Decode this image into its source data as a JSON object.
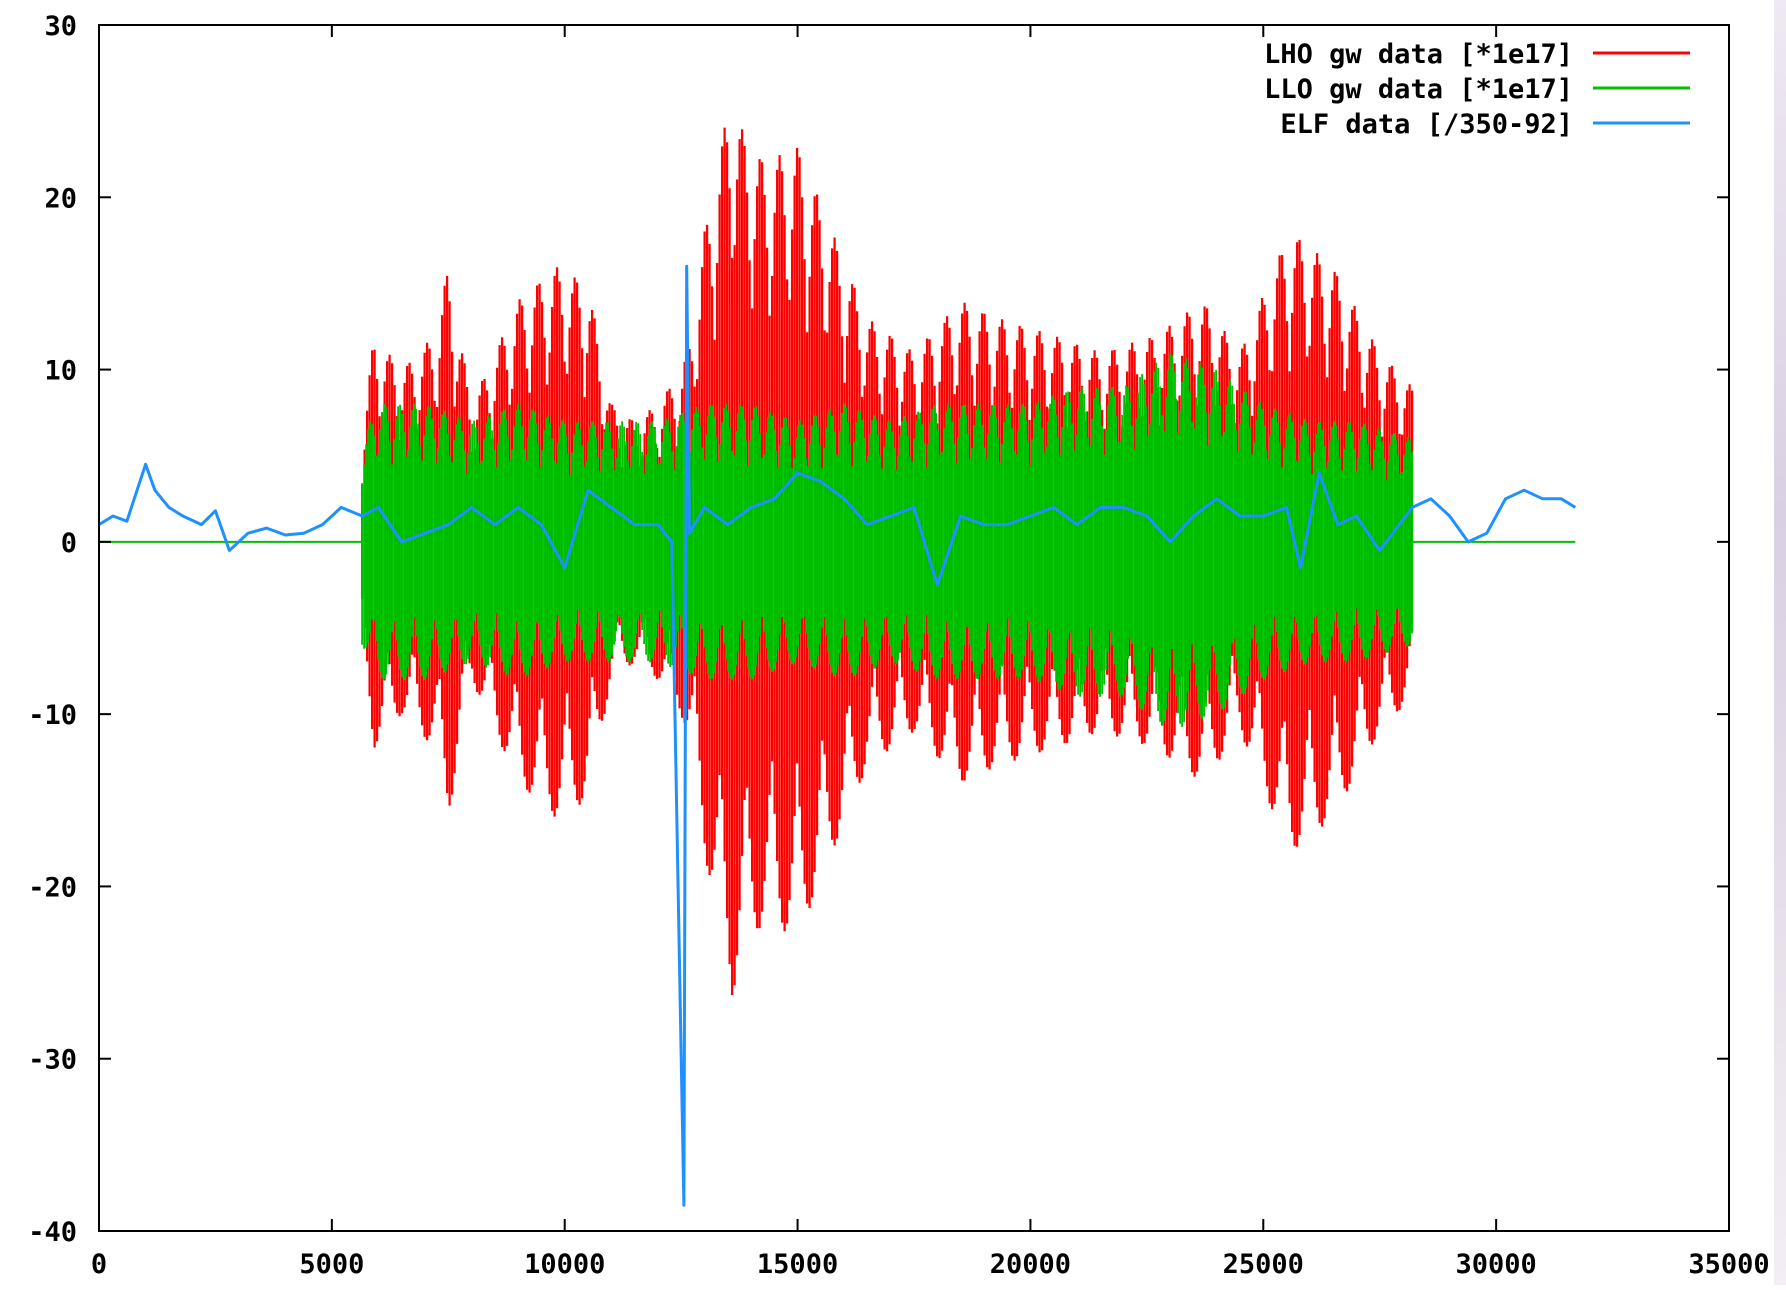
{
  "colors": {
    "lho": "#ff0000",
    "llo": "#00c000",
    "elf": "#1e90ff",
    "axis": "#000000",
    "background": "#ffffff"
  },
  "chart_data": {
    "type": "line",
    "title": "",
    "xlabel": "",
    "ylabel": "",
    "xlim": [
      0,
      35000
    ],
    "ylim": [
      -40,
      30
    ],
    "xticks": [
      0,
      5000,
      10000,
      15000,
      20000,
      25000,
      30000,
      35000
    ],
    "xtick_labels": [
      "0",
      "5000",
      "10000",
      "15000",
      "20000",
      "25000",
      "30000",
      "35000"
    ],
    "yticks": [
      -40,
      -30,
      -20,
      -10,
      0,
      10,
      20,
      30
    ],
    "ytick_labels": [
      "-40",
      "-30",
      "-20",
      "-10",
      "0",
      "10",
      "20",
      "30"
    ],
    "grid": false,
    "legend_position": "top-right",
    "series": [
      {
        "name": "LHO gw data [*1e17]",
        "color": "#ff0000",
        "style": "dense oscillating signal (envelope shown)",
        "x_range": [
          5650,
          28200
        ],
        "zero_outside_range": false,
        "envelope_x": [
          5650,
          5900,
          6500,
          7200,
          7500,
          8000,
          9000,
          9800,
          10500,
          11000,
          11500,
          12000,
          12500,
          12700,
          13000,
          13600,
          13800,
          14300,
          15000,
          15600,
          16500,
          17500,
          18500,
          19300,
          20500,
          21500,
          22700,
          23700,
          24500,
          25400,
          25600,
          26500,
          27500,
          28200
        ],
        "envelope_upper": [
          6,
          12,
          10,
          12,
          16,
          8,
          14,
          16,
          15,
          8,
          7,
          8,
          10,
          12,
          18,
          26.5,
          24,
          22,
          23,
          19,
          13,
          11,
          14,
          13,
          12,
          11,
          12,
          14,
          11,
          17,
          18,
          16,
          11,
          9
        ],
        "envelope_lower": [
          -6,
          -12,
          -10,
          -12,
          -16,
          -8,
          -14,
          -16,
          -15,
          -8,
          -7,
          -8,
          -10,
          -12,
          -18,
          -26.5,
          -24,
          -22,
          -23,
          -19,
          -13,
          -11,
          -14,
          -13,
          -12,
          -11,
          -12,
          -14,
          -11,
          -17,
          -18,
          -16,
          -11,
          -9
        ]
      },
      {
        "name": "LLO gw data [*1e17]",
        "color": "#00c000",
        "style": "dense oscillating signal (envelope shown)",
        "x_range": [
          5650,
          28200
        ],
        "zero_outside_range": true,
        "envelope_x": [
          5650,
          6000,
          7000,
          8000,
          9000,
          10000,
          11000,
          12000,
          13000,
          14000,
          15000,
          16000,
          17000,
          18000,
          19000,
          20000,
          21000,
          22000,
          23000,
          24000,
          25000,
          26000,
          27000,
          28200
        ],
        "envelope_upper": [
          6,
          8,
          8,
          7,
          8,
          7,
          7,
          7,
          8,
          8,
          7,
          8,
          7,
          8,
          8,
          8,
          9,
          9,
          11,
          10,
          8,
          7,
          7,
          6
        ],
        "envelope_lower": [
          -6,
          -8,
          -8,
          -7,
          -8,
          -7,
          -7,
          -7,
          -8,
          -8,
          -7,
          -8,
          -7,
          -8,
          -8,
          -8,
          -9,
          -9,
          -11,
          -10,
          -8,
          -7,
          -7,
          -6
        ]
      },
      {
        "name": "ELF data [/350-92]",
        "color": "#1e90ff",
        "style": "line",
        "x": [
          0,
          300,
          600,
          1000,
          1200,
          1500,
          1800,
          2200,
          2500,
          2800,
          3200,
          3600,
          4000,
          4400,
          4800,
          5200,
          5650,
          6000,
          6500,
          7000,
          7500,
          8000,
          8500,
          9000,
          9500,
          10000,
          10500,
          11000,
          11500,
          12000,
          12300,
          12560,
          12620,
          12680,
          13000,
          13500,
          14000,
          14500,
          15000,
          15500,
          16000,
          16500,
          17000,
          17500,
          18000,
          18500,
          19000,
          19500,
          20000,
          20500,
          21000,
          21500,
          22000,
          22500,
          23000,
          23500,
          24000,
          24500,
          25000,
          25500,
          25800,
          26200,
          26600,
          27000,
          27500,
          28200,
          28600,
          29000,
          29400,
          29800,
          30200,
          30600,
          31000,
          31400,
          31700
        ],
        "y": [
          1,
          1.5,
          1.2,
          4.5,
          3,
          2,
          1.5,
          1,
          1.8,
          -0.5,
          0.5,
          0.8,
          0.4,
          0.5,
          1,
          2,
          1.5,
          2,
          0,
          0.5,
          1,
          2,
          1,
          2,
          1,
          -1.5,
          3,
          2,
          1,
          1,
          0,
          -38.5,
          16,
          0.5,
          2,
          1,
          2,
          2.5,
          4,
          3.5,
          2.5,
          1,
          1.5,
          2,
          -2.5,
          1.5,
          1,
          1,
          1.5,
          2,
          1,
          2,
          2,
          1.5,
          0,
          1.5,
          2.5,
          1.5,
          1.5,
          2,
          -1.5,
          4,
          1,
          1.5,
          -0.5,
          2,
          2.5,
          1.5,
          0,
          0.5,
          2.5,
          3,
          2.5,
          2.5,
          2
        ]
      }
    ]
  }
}
